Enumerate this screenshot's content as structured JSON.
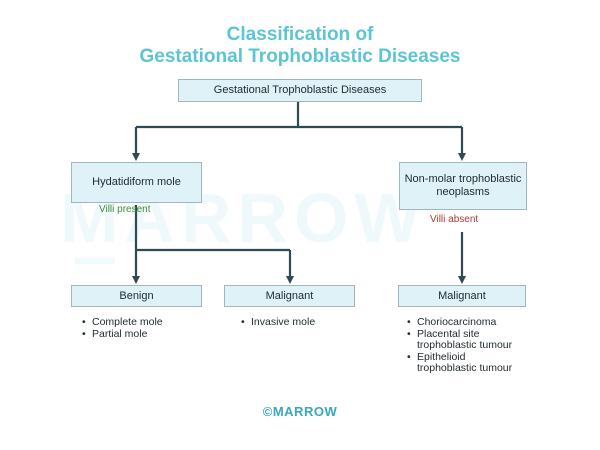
{
  "title": {
    "line1": "Classification of",
    "line2": "Gestational Trophoblastic Diseases"
  },
  "watermark": "MARROW",
  "nodes": {
    "root": "Gestational Trophoblastic Diseases",
    "hydatidiform": "Hydatidiform mole",
    "nonmolar": "Non-molar trophoblastic neoplasms",
    "benign": "Benign",
    "malignant_mole": "Malignant",
    "malignant_neoplasm": "Malignant"
  },
  "notes": {
    "villi_present": "Villi present",
    "villi_absent": "Villi absent"
  },
  "lists": {
    "benign": [
      "Complete mole",
      "Partial mole"
    ],
    "malignant_mole": [
      "Invasive mole"
    ],
    "malignant_neoplasm": [
      "Choriocarcinoma",
      "Placental site trophoblastic tumour",
      "Epithelioid trophoblastic tumour"
    ]
  },
  "footer": "©MARROW",
  "colors": {
    "title": "#5bc4d5",
    "box_fill": "#dff2f7",
    "box_border": "#9fb8bf",
    "arrow": "#2f4a52",
    "villi_present": "#3d8a3a",
    "villi_absent": "#b03a2e"
  }
}
